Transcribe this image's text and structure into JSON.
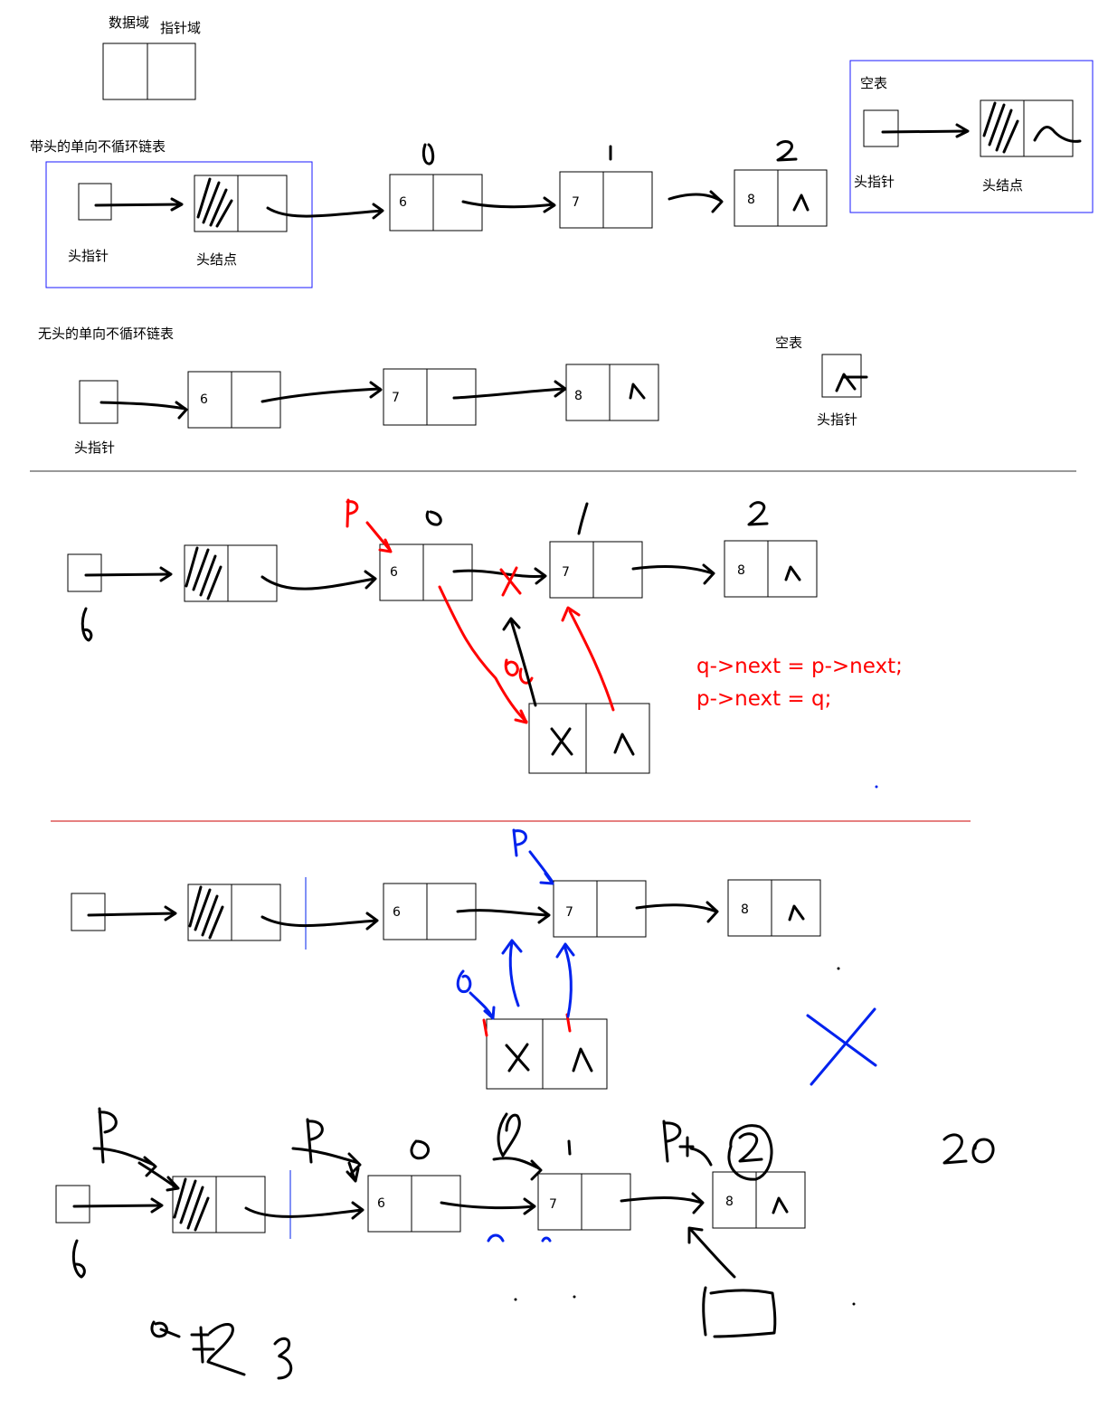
{
  "labels": {
    "data_field": "数据域",
    "pointer_field": "指针域",
    "headed_title": "带头的单向不循环链表",
    "headless_title": "无头的单向不循环链表",
    "empty_list": "空表",
    "head_pointer": "头指针",
    "head_node": "头结点"
  },
  "node_values": {
    "v6": "6",
    "v7": "7",
    "v8": "8"
  },
  "indexes": {
    "i0": "0",
    "i1": "1",
    "i2": "2"
  },
  "code": {
    "line1": "q->next = p->next;",
    "line2": "p->next = q;"
  },
  "colors": {
    "ink": "#000000",
    "red": "#ff0000",
    "blue": "#0022ee",
    "frame": "#1a1aff"
  }
}
